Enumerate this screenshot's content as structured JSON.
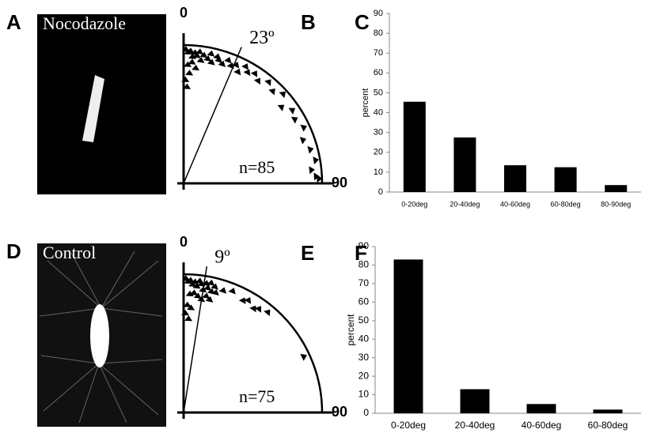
{
  "panels": {
    "A": "A",
    "B": "B",
    "C": "C",
    "D": "D",
    "E": "E",
    "F": "F",
    "image_a_label": "Nocodazole",
    "image_d_label": "Control"
  },
  "chart_data": [
    {
      "type": "bar",
      "y_label": "percent",
      "categories": [
        "0-20deg",
        "20-40deg",
        "40-60deg",
        "60-80deg",
        "80-90deg"
      ],
      "values": [
        45.5,
        27.5,
        13.5,
        12.5,
        3.5
      ],
      "color": "#000000",
      "ylim": [
        0,
        90
      ],
      "yticks": [
        0,
        10,
        20,
        30,
        40,
        50,
        60,
        70,
        80,
        90
      ],
      "grid": false
    },
    {
      "type": "bar",
      "y_label": "percent",
      "categories": [
        "0-20deg",
        "20-40deg",
        "40-60deg",
        "60-80deg"
      ],
      "values": [
        83,
        13,
        5,
        2
      ],
      "color": "#000000",
      "ylim": [
        0,
        90
      ],
      "yticks": [
        0,
        10,
        20,
        30,
        40,
        50,
        60,
        70,
        80,
        90
      ],
      "grid": false
    },
    {
      "type": "polar",
      "thetalim": [
        0,
        90
      ],
      "thetaticks": [
        0,
        90
      ],
      "rlim": [
        0,
        1
      ],
      "mean_angle": {
        "value": 23,
        "label": "23º"
      },
      "annotation": "n=85",
      "theta": [
        1,
        2,
        3,
        4,
        5,
        6,
        7,
        8,
        2,
        4,
        6,
        3,
        1,
        2,
        9,
        11,
        12,
        13,
        15,
        16,
        18,
        20,
        22,
        24,
        26,
        28,
        30,
        33,
        36,
        40,
        44,
        48,
        52,
        56,
        60,
        65,
        70,
        75,
        80,
        84,
        87,
        88
      ],
      "r": [
        0.97,
        0.95,
        0.96,
        0.92,
        0.95,
        0.93,
        0.96,
        0.9,
        0.86,
        0.88,
        0.84,
        0.8,
        0.75,
        0.7,
        0.94,
        0.92,
        0.96,
        0.9,
        0.95,
        0.93,
        0.91,
        0.95,
        0.92,
        0.94,
        0.9,
        0.96,
        0.93,
        0.95,
        0.92,
        0.96,
        0.93,
        0.97,
        0.9,
        0.95,
        0.93,
        0.96,
        0.92,
        0.95,
        0.97,
        0.93,
        0.96,
        0.98
      ]
    },
    {
      "type": "polar",
      "thetalim": [
        0,
        90
      ],
      "thetaticks": [
        0,
        90
      ],
      "rlim": [
        0,
        1
      ],
      "mean_angle": {
        "value": 9,
        "label": "9º"
      },
      "annotation": "n=75",
      "theta": [
        1,
        2,
        3,
        4,
        5,
        6,
        7,
        8,
        9,
        10,
        11,
        12,
        13,
        14,
        3,
        5,
        7,
        9,
        11,
        13,
        15,
        2,
        4,
        1,
        3,
        18,
        22,
        28,
        30,
        34,
        36,
        40,
        65
      ],
      "r": [
        0.97,
        0.95,
        0.96,
        0.93,
        0.95,
        0.92,
        0.96,
        0.94,
        0.9,
        0.95,
        0.92,
        0.96,
        0.9,
        0.94,
        0.86,
        0.87,
        0.85,
        0.83,
        0.86,
        0.84,
        0.9,
        0.78,
        0.76,
        0.72,
        0.68,
        0.93,
        0.95,
        0.92,
        0.94,
        0.91,
        0.93,
        0.95,
        0.96
      ]
    }
  ]
}
